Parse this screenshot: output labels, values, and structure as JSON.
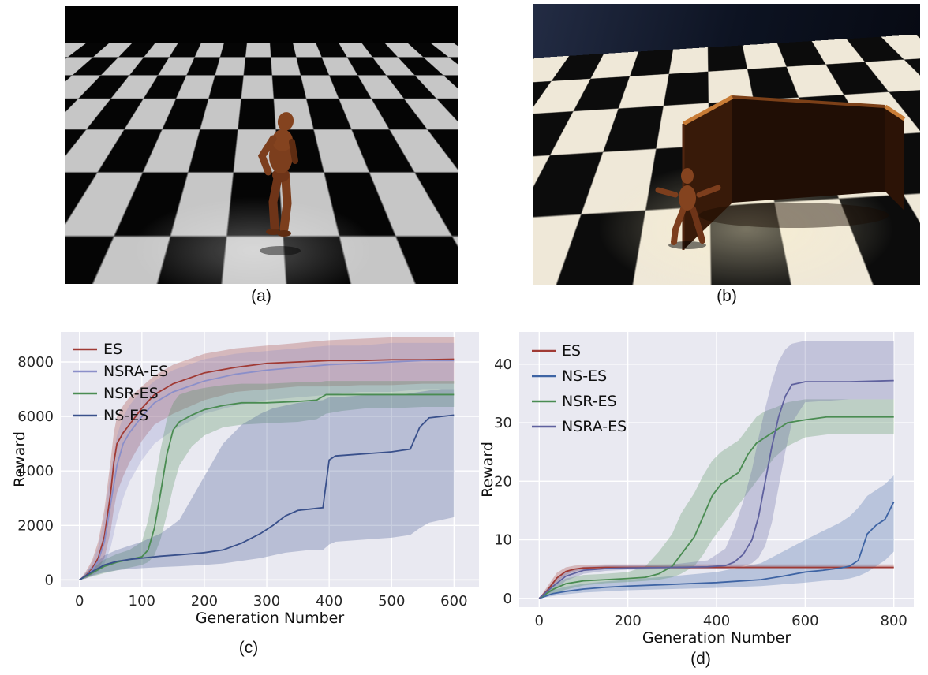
{
  "figure": {
    "captions": {
      "a": "(a)",
      "b": "(b)",
      "c": "(c)",
      "d": "(d)"
    }
  },
  "chart_data": [
    {
      "type": "line",
      "title": "",
      "xlabel": "Generation Number",
      "ylabel": "Reward",
      "xlim": [
        -30,
        640
      ],
      "ylim": [
        -250,
        9100
      ],
      "xticks": [
        0,
        100,
        200,
        300,
        400,
        500,
        600
      ],
      "yticks": [
        0,
        2000,
        4000,
        6000,
        8000
      ],
      "plot_bg": "#e9e9f1",
      "grid_color": "#ffffff",
      "grid": true,
      "legend_position": "upper left",
      "series": [
        {
          "name": "ES",
          "color": "#a03a34",
          "x": [
            0,
            10,
            20,
            30,
            40,
            50,
            55,
            60,
            70,
            80,
            90,
            100,
            120,
            150,
            200,
            250,
            300,
            350,
            400,
            450,
            500,
            550,
            600
          ],
          "y": [
            0,
            150,
            400,
            800,
            1600,
            3200,
            4300,
            5000,
            5400,
            5700,
            6000,
            6300,
            6800,
            7200,
            7600,
            7800,
            7950,
            8000,
            8050,
            8050,
            8080,
            8080,
            8100
          ],
          "band_lower": [
            0,
            50,
            200,
            400,
            800,
            1800,
            2600,
            3200,
            3800,
            4300,
            4700,
            5100,
            5700,
            6100,
            6600,
            6900,
            7000,
            7100,
            7100,
            7150,
            7150,
            7200,
            7200
          ],
          "band_upper": [
            0,
            300,
            700,
            1400,
            2600,
            4400,
            5400,
            6000,
            6400,
            6700,
            6900,
            7100,
            7500,
            7900,
            8300,
            8500,
            8600,
            8700,
            8800,
            8850,
            8900,
            8900,
            8900
          ]
        },
        {
          "name": "NSRA-ES",
          "color": "#8b8fc9",
          "x": [
            0,
            10,
            20,
            30,
            40,
            50,
            60,
            70,
            80,
            90,
            100,
            120,
            150,
            200,
            250,
            300,
            350,
            400,
            450,
            500,
            550,
            600
          ],
          "y": [
            0,
            120,
            350,
            700,
            1400,
            2800,
            4200,
            5000,
            5400,
            5700,
            6000,
            6500,
            6900,
            7300,
            7550,
            7700,
            7800,
            7900,
            7950,
            8000,
            8050,
            8050
          ],
          "band_lower": [
            0,
            40,
            150,
            300,
            600,
            1200,
            2200,
            3000,
            3600,
            4000,
            4400,
            5000,
            5500,
            6100,
            6400,
            6600,
            6700,
            6800,
            6900,
            6900,
            7000,
            7000
          ],
          "band_upper": [
            0,
            250,
            600,
            1200,
            2300,
            4000,
            5300,
            6000,
            6400,
            6700,
            6900,
            7300,
            7700,
            8100,
            8300,
            8400,
            8500,
            8600,
            8600,
            8700,
            8700,
            8700
          ]
        },
        {
          "name": "NSR-ES",
          "color": "#4a8c52",
          "x": [
            0,
            20,
            40,
            60,
            80,
            100,
            110,
            120,
            130,
            140,
            150,
            160,
            180,
            200,
            230,
            260,
            300,
            350,
            380,
            395,
            420,
            460,
            500,
            550,
            600
          ],
          "y": [
            0,
            250,
            500,
            650,
            750,
            850,
            1100,
            1900,
            3200,
            4600,
            5500,
            5800,
            6050,
            6250,
            6400,
            6500,
            6500,
            6550,
            6600,
            6800,
            6800,
            6800,
            6800,
            6800,
            6800
          ],
          "band_lower": [
            0,
            120,
            250,
            350,
            450,
            550,
            650,
            900,
            1500,
            2400,
            3400,
            4200,
            4900,
            5300,
            5600,
            5700,
            5750,
            5800,
            5900,
            6100,
            6200,
            6300,
            6300,
            6350,
            6350
          ],
          "band_upper": [
            0,
            400,
            750,
            950,
            1100,
            1400,
            2200,
            3500,
            4800,
            5900,
            6500,
            6800,
            6950,
            7050,
            7150,
            7200,
            7200,
            7250,
            7250,
            7300,
            7300,
            7300,
            7300,
            7300,
            7300
          ]
        },
        {
          "name": "NS-ES",
          "color": "#39508b",
          "x": [
            0,
            20,
            40,
            60,
            80,
            100,
            130,
            160,
            200,
            230,
            260,
            290,
            310,
            330,
            350,
            370,
            390,
            400,
            410,
            440,
            470,
            500,
            515,
            530,
            545,
            560,
            580,
            600
          ],
          "y": [
            0,
            300,
            550,
            680,
            750,
            800,
            870,
            920,
            1000,
            1100,
            1350,
            1700,
            2000,
            2350,
            2550,
            2600,
            2650,
            4400,
            4550,
            4600,
            4650,
            4700,
            4750,
            4800,
            5600,
            5950,
            6000,
            6050
          ],
          "band_lower": [
            0,
            150,
            280,
            350,
            400,
            430,
            470,
            500,
            550,
            600,
            700,
            800,
            900,
            1000,
            1050,
            1100,
            1100,
            1300,
            1400,
            1450,
            1500,
            1550,
            1600,
            1650,
            1900,
            2100,
            2200,
            2300
          ],
          "band_upper": [
            0,
            500,
            900,
            1100,
            1250,
            1400,
            1700,
            2200,
            3800,
            5000,
            5700,
            6100,
            6300,
            6400,
            6500,
            6550,
            6600,
            6700,
            6700,
            6750,
            6800,
            6800,
            6800,
            6850,
            6900,
            6950,
            7000,
            7000
          ]
        }
      ]
    },
    {
      "type": "line",
      "title": "",
      "xlabel": "Generation Number",
      "ylabel": "Reward",
      "xlim": [
        -45,
        845
      ],
      "ylim": [
        -1.5,
        45.5
      ],
      "xticks": [
        0,
        200,
        400,
        600,
        800
      ],
      "yticks": [
        0,
        10,
        20,
        30,
        40
      ],
      "plot_bg": "#e9e9f1",
      "grid_color": "#ffffff",
      "grid": true,
      "legend_position": "upper left",
      "series": [
        {
          "name": "ES",
          "color": "#a03a34",
          "x": [
            0,
            20,
            40,
            60,
            80,
            100,
            150,
            200,
            300,
            400,
            500,
            600,
            700,
            800
          ],
          "y": [
            0,
            1.5,
            3.5,
            4.6,
            5.0,
            5.2,
            5.3,
            5.3,
            5.3,
            5.3,
            5.3,
            5.3,
            5.3,
            5.3
          ],
          "band_lower": [
            0,
            1.0,
            2.8,
            4.0,
            4.6,
            4.9,
            5.0,
            5.0,
            5.0,
            5.0,
            5.0,
            5.0,
            5.0,
            5.0
          ],
          "band_upper": [
            0,
            2.2,
            4.4,
            5.3,
            5.6,
            5.7,
            5.8,
            5.8,
            5.8,
            5.8,
            5.8,
            5.8,
            5.8,
            5.8
          ]
        },
        {
          "name": "NS-ES",
          "color": "#3e64a4",
          "x": [
            0,
            30,
            60,
            100,
            150,
            200,
            300,
            400,
            500,
            550,
            600,
            640,
            680,
            700,
            720,
            740,
            760,
            780,
            800
          ],
          "y": [
            0,
            0.8,
            1.2,
            1.6,
            1.9,
            2.1,
            2.4,
            2.7,
            3.2,
            3.8,
            4.5,
            4.8,
            5.2,
            5.5,
            6.5,
            11.0,
            12.5,
            13.5,
            16.5
          ],
          "band_lower": [
            0,
            0.4,
            0.7,
            1.0,
            1.2,
            1.4,
            1.6,
            1.8,
            2.1,
            2.4,
            2.7,
            3.0,
            3.2,
            3.4,
            3.8,
            4.5,
            5.5,
            6.5,
            8.0
          ],
          "band_upper": [
            0,
            1.4,
            2.0,
            2.5,
            2.9,
            3.2,
            3.8,
            4.5,
            6.0,
            8.0,
            10.0,
            11.5,
            13.0,
            14.0,
            15.5,
            17.5,
            18.5,
            19.5,
            21.0
          ]
        },
        {
          "name": "NSR-ES",
          "color": "#4a8c52",
          "x": [
            0,
            30,
            60,
            100,
            150,
            200,
            240,
            270,
            300,
            320,
            350,
            370,
            390,
            410,
            430,
            450,
            470,
            490,
            510,
            530,
            560,
            600,
            650,
            700,
            750,
            800
          ],
          "y": [
            0,
            1.5,
            2.5,
            3.0,
            3.2,
            3.4,
            3.6,
            4.2,
            5.5,
            7.5,
            10.5,
            14.0,
            17.5,
            19.5,
            20.5,
            21.5,
            24.5,
            26.5,
            27.5,
            28.5,
            30.0,
            30.5,
            31.0,
            31.0,
            31.0,
            31.0
          ],
          "band_lower": [
            0,
            0.8,
            1.5,
            2.2,
            2.6,
            2.8,
            3.0,
            3.2,
            3.6,
            4.2,
            5.5,
            7.5,
            10.0,
            12.0,
            14.0,
            16.0,
            18.0,
            20.0,
            22.0,
            24.0,
            26.0,
            27.5,
            28.0,
            28.0,
            28.0,
            28.0
          ],
          "band_upper": [
            0,
            2.2,
            3.4,
            4.0,
            4.2,
            4.5,
            5.5,
            8.0,
            11.0,
            14.5,
            18.0,
            21.0,
            23.5,
            25.0,
            26.0,
            27.0,
            29.0,
            31.0,
            32.0,
            32.5,
            33.5,
            34.0,
            34.0,
            34.0,
            34.0,
            34.0
          ]
        },
        {
          "name": "NSRA-ES",
          "color": "#5f619e",
          "x": [
            0,
            30,
            60,
            100,
            150,
            200,
            300,
            380,
            420,
            440,
            460,
            480,
            495,
            510,
            525,
            540,
            555,
            570,
            600,
            700,
            800
          ],
          "y": [
            0,
            2.0,
            3.8,
            4.8,
            5.1,
            5.2,
            5.3,
            5.4,
            5.6,
            6.2,
            7.5,
            10.0,
            14.0,
            20.0,
            26.0,
            31.0,
            34.5,
            36.5,
            37.0,
            37.0,
            37.2
          ],
          "band_lower": [
            0,
            1.2,
            3.0,
            4.2,
            4.7,
            4.9,
            5.0,
            5.0,
            5.1,
            5.2,
            5.5,
            6.0,
            7.0,
            9.0,
            13.0,
            19.0,
            25.0,
            30.0,
            33.5,
            34.0,
            34.0
          ],
          "band_upper": [
            0,
            2.8,
            4.6,
            5.4,
            5.6,
            5.7,
            5.8,
            6.5,
            8.5,
            12.0,
            16.5,
            22.0,
            27.5,
            32.5,
            37.0,
            40.5,
            42.5,
            43.5,
            44.0,
            44.0,
            44.0
          ]
        }
      ]
    }
  ]
}
